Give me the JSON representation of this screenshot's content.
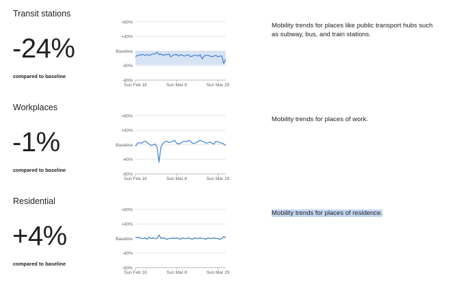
{
  "chart_data": [
    {
      "type": "line",
      "title": "Transit stations",
      "change_label": "-24%",
      "subtitle": "compared to baseline",
      "description": "Mobility trends for places like public transport hubs such as subway, bus, and train stations.",
      "yticks": [
        "+80%",
        "+40%",
        "Baseline",
        "-40%",
        "-80%"
      ],
      "ylim": [
        -80,
        80
      ],
      "xticks": [
        {
          "label": "Sun Feb 16",
          "day": 0
        },
        {
          "label": "Sun Mar 8",
          "day": 21
        },
        {
          "label": "Sun Mar 29",
          "day": 42
        }
      ],
      "baseline_band": [
        0,
        -38
      ],
      "series": [
        {
          "x": [
            0,
            1,
            2,
            3,
            4,
            5,
            6,
            7,
            8,
            9,
            10,
            11,
            12,
            13,
            14,
            15,
            16,
            17,
            18,
            19,
            20,
            21,
            22,
            23,
            24,
            25,
            26,
            27,
            28,
            29,
            30,
            31,
            32,
            33,
            34,
            35,
            36,
            37,
            38,
            39,
            40,
            41,
            42,
            43,
            44,
            45,
            46
          ],
          "values": [
            -16,
            -12,
            -12,
            -10,
            -10,
            -12,
            -10,
            -12,
            -10,
            -8,
            -8,
            -3,
            -10,
            -8,
            -12,
            -10,
            -10,
            -8,
            -16,
            -12,
            -10,
            -10,
            -14,
            -10,
            -12,
            -14,
            -12,
            -10,
            -16,
            -14,
            -12,
            -12,
            -14,
            -10,
            -22,
            -14,
            -12,
            -12,
            -14,
            -16,
            -14,
            -12,
            -16,
            -14,
            -14,
            -34,
            -22
          ]
        }
      ]
    },
    {
      "type": "line",
      "title": "Workplaces",
      "change_label": "-1%",
      "subtitle": "compared to baseline",
      "description": "Mobility trends for places of work.",
      "yticks": [
        "+80%",
        "+40%",
        "Baseline",
        "-40%",
        "-80%"
      ],
      "ylim": [
        -80,
        80
      ],
      "xticks": [
        {
          "label": "Sun Feb 16",
          "day": 0
        },
        {
          "label": "Sun Mar 8",
          "day": 21
        },
        {
          "label": "Sun Mar 29",
          "day": 42
        }
      ],
      "series": [
        {
          "x": [
            0,
            1,
            2,
            3,
            4,
            5,
            6,
            7,
            8,
            9,
            10,
            11,
            12,
            13,
            14,
            15,
            16,
            17,
            18,
            19,
            20,
            21,
            22,
            23,
            24,
            25,
            26,
            27,
            28,
            29,
            30,
            31,
            32,
            33,
            34,
            35,
            36,
            37,
            38,
            39,
            40,
            41,
            42,
            43,
            44,
            45,
            46
          ],
          "values": [
            -4,
            4,
            6,
            4,
            8,
            10,
            6,
            2,
            -2,
            0,
            2,
            -6,
            -48,
            -6,
            4,
            8,
            10,
            6,
            8,
            10,
            12,
            4,
            2,
            4,
            8,
            10,
            8,
            12,
            10,
            4,
            4,
            6,
            10,
            12,
            10,
            8,
            4,
            6,
            8,
            4,
            2,
            10,
            8,
            6,
            4,
            2,
            -2
          ]
        }
      ]
    },
    {
      "type": "line",
      "title": "Residential",
      "change_label": "+4%",
      "subtitle": "compared to baseline",
      "description": "Mobility trends for places of residence.",
      "yticks": [
        "+80%",
        "+40%",
        "Baseline",
        "-40%",
        "-80%"
      ],
      "ylim": [
        -80,
        80
      ],
      "xticks": [
        {
          "label": "Sun Feb 16",
          "day": 0
        },
        {
          "label": "Sun Mar 8",
          "day": 21
        },
        {
          "label": "Sun Mar 29",
          "day": 42
        }
      ],
      "series": [
        {
          "x": [
            0,
            1,
            2,
            3,
            4,
            5,
            6,
            7,
            8,
            9,
            10,
            11,
            12,
            13,
            14,
            15,
            16,
            17,
            18,
            19,
            20,
            21,
            22,
            23,
            24,
            25,
            26,
            27,
            28,
            29,
            30,
            31,
            32,
            33,
            34,
            35,
            36,
            37,
            38,
            39,
            40,
            41,
            42,
            43,
            44,
            45,
            46
          ],
          "values": [
            4,
            2,
            4,
            0,
            0,
            2,
            -2,
            4,
            0,
            2,
            0,
            0,
            10,
            0,
            2,
            0,
            -2,
            0,
            0,
            2,
            0,
            2,
            0,
            -2,
            2,
            0,
            0,
            2,
            0,
            -2,
            2,
            0,
            0,
            2,
            0,
            0,
            -2,
            2,
            0,
            0,
            2,
            0,
            0,
            -2,
            0,
            6,
            2
          ]
        }
      ]
    }
  ],
  "colors": {
    "line": "#4a86cf",
    "band": "#d6e3f5",
    "grid": "#dadce0",
    "axis": "#9aa0a6"
  }
}
